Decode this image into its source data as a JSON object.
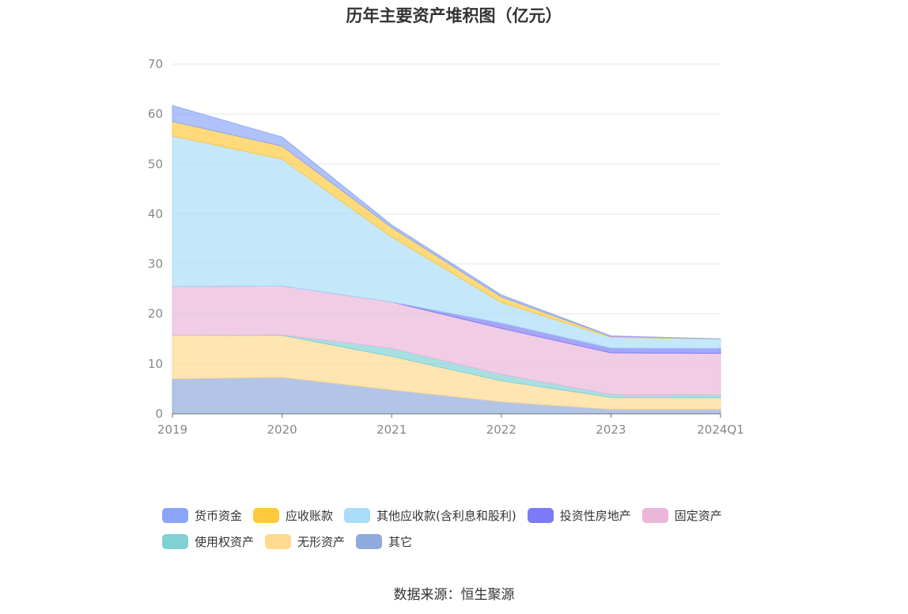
{
  "chart_data": {
    "type": "area",
    "stacked": true,
    "title": "历年主要资产堆积图（亿元）",
    "categories": [
      "2019",
      "2020",
      "2021",
      "2022",
      "2023",
      "2024Q1"
    ],
    "ylim": [
      0,
      70
    ],
    "yticks": [
      0,
      10,
      20,
      30,
      40,
      50,
      60,
      70
    ],
    "grid": true,
    "legend_position": "bottom",
    "series": [
      {
        "name": "其它",
        "color": "#8faadc",
        "values": [
          7.0,
          7.3,
          4.8,
          2.4,
          0.9,
          0.9
        ]
      },
      {
        "name": "无形资产",
        "color": "#ffd98e",
        "values": [
          8.7,
          8.4,
          6.7,
          4.2,
          2.4,
          2.3
        ]
      },
      {
        "name": "使用权资产",
        "color": "#7fd1d4",
        "values": [
          0.0,
          0.1,
          1.6,
          1.3,
          0.6,
          0.6
        ]
      },
      {
        "name": "固定资产",
        "color": "#eab6d9",
        "values": [
          9.8,
          9.8,
          9.3,
          9.2,
          8.3,
          8.3
        ]
      },
      {
        "name": "投资性房地产",
        "color": "#7b7cf5",
        "values": [
          0.0,
          0.0,
          0.0,
          1.1,
          1.0,
          1.0
        ]
      },
      {
        "name": "其他应收款(含利息和股利)",
        "color": "#a9dcf7",
        "values": [
          30.1,
          25.4,
          13.0,
          4.1,
          2.1,
          1.9
        ]
      },
      {
        "name": "应收账款",
        "color": "#ffc83d",
        "values": [
          2.9,
          2.6,
          1.9,
          1.1,
          0.2,
          0.0
        ]
      },
      {
        "name": "货币资金",
        "color": "#8aa5f8",
        "values": [
          3.2,
          1.8,
          0.5,
          0.4,
          0.1,
          0.0
        ]
      }
    ]
  },
  "legend": {
    "row1": [
      {
        "name": "货币资金",
        "color": "#8aa5f8"
      },
      {
        "name": "应收账款",
        "color": "#ffc83d"
      },
      {
        "name": "其他应收款(含利息和股利)",
        "color": "#a9dcf7"
      },
      {
        "name": "投资性房地产",
        "color": "#7b7cf5"
      },
      {
        "name": "固定资产",
        "color": "#eab6d9"
      }
    ],
    "row2": [
      {
        "name": "使用权资产",
        "color": "#7fd1d4"
      },
      {
        "name": "无形资产",
        "color": "#ffd98e"
      },
      {
        "name": "其它",
        "color": "#8faadc"
      }
    ]
  },
  "source": "数据来源：恒生聚源"
}
